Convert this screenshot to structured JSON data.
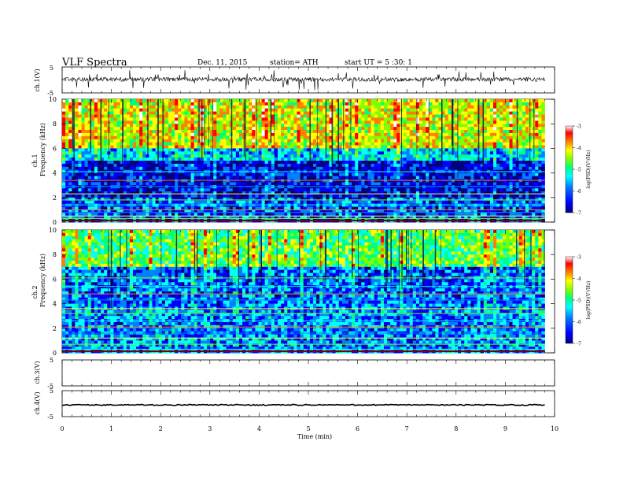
{
  "header": {
    "title": "VLF  Spectra",
    "date": "Dec. 11, 2015",
    "station": "station= ATH",
    "start": "start  UT  =   5  :30: 1"
  },
  "chart_data": [
    {
      "type": "line",
      "panel": "ch1-waveform",
      "ylabel": "ch.1(V)",
      "ylim": [
        -5,
        5
      ],
      "yticklabels": [
        "5",
        "-5"
      ],
      "xlim": [
        0,
        10
      ],
      "approx_mean_level": 0.2,
      "data_extent_min": 9.8
    },
    {
      "type": "heatmap",
      "panel": "ch1-spectrogram",
      "ylabel_top": "ch.1",
      "ylabel": "Frequency  (kHz)",
      "ylim": [
        0,
        10
      ],
      "yticks": [
        0,
        2,
        4,
        6,
        8,
        10
      ],
      "xlim": [
        0,
        10
      ],
      "data_extent_min": 9.8,
      "colorbar": {
        "label": "log(PSD)(V²/Hz)",
        "range": [
          -7,
          -3
        ],
        "ticks": [
          "-3",
          "-4",
          "-5",
          "-6",
          "-7"
        ]
      },
      "colormap": [
        "#000080",
        "#0000ff",
        "#0080ff",
        "#00ffff",
        "#00ff80",
        "#80ff00",
        "#ffff00",
        "#ff8000",
        "#ff0000",
        "#ffffff"
      ],
      "bands": [
        {
          "f": [
            6,
            10
          ],
          "level": -4.5
        },
        {
          "f": [
            5,
            6
          ],
          "level": -5.7
        },
        {
          "f": [
            2,
            5
          ],
          "level": -6.5
        },
        {
          "f": [
            0,
            2
          ],
          "level": -6.2
        }
      ],
      "lines_khz": [
        0.1,
        0.3,
        0.5,
        0.8,
        1.0,
        1.4,
        1.8,
        2.3,
        2.9,
        3.4,
        4.1
      ]
    },
    {
      "type": "heatmap",
      "panel": "ch2-spectrogram",
      "ylabel_top": "ch.2",
      "ylabel": "Frequency  (kHz)",
      "ylim": [
        0,
        10
      ],
      "yticks": [
        0,
        2,
        4,
        6,
        8,
        10
      ],
      "xlim": [
        0,
        10
      ],
      "data_extent_min": 9.8,
      "colorbar": {
        "label": "log(PSD)(V²/Hz)",
        "range": [
          -7,
          -3
        ],
        "ticks": [
          "-3",
          "-4",
          "-5",
          "-6",
          "-7"
        ]
      },
      "colormap": [
        "#000080",
        "#0000ff",
        "#0080ff",
        "#00ffff",
        "#00ff80",
        "#80ff00",
        "#ffff00",
        "#ff8000",
        "#ff0000",
        "#ffffff"
      ],
      "bands": [
        {
          "f": [
            7,
            10
          ],
          "level": -5.0
        },
        {
          "f": [
            4,
            7
          ],
          "level": -6.1
        },
        {
          "f": [
            0,
            4
          ],
          "level": -6.0
        }
      ],
      "lines_khz": [
        0.3,
        0.7,
        1.2,
        1.6,
        2.1,
        2.6,
        3.2,
        3.6,
        4.3,
        4.8,
        5.4,
        6.1
      ]
    },
    {
      "type": "line",
      "panel": "ch3-waveform",
      "ylabel": "ch.3(V)",
      "ylim": [
        -5,
        5
      ],
      "yticklabels": [
        "5",
        "-5"
      ],
      "xlim": [
        0,
        10
      ],
      "values_present": false
    },
    {
      "type": "line",
      "panel": "ch4-waveform",
      "ylabel": "ch.4(V)",
      "ylim": [
        -5,
        5
      ],
      "yticklabels": [
        "5",
        "-5"
      ],
      "xlim": [
        0,
        10
      ],
      "approx_level": -0.5,
      "data_extent_min": 9.8
    }
  ],
  "xaxis": {
    "label": "Time  (min)",
    "ticks": [
      "0",
      "1",
      "2",
      "3",
      "4",
      "5",
      "6",
      "7",
      "8",
      "9",
      "10"
    ]
  }
}
